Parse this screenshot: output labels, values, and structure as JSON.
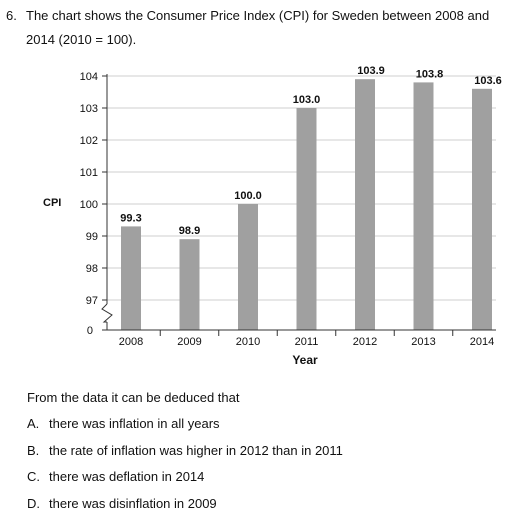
{
  "question": {
    "number": "6.",
    "text_line1": "The chart shows the Consumer Price Index (CPI) for Sweden between 2008 and",
    "text_line2": "2014 (2010 = 100)."
  },
  "chart_data": {
    "type": "bar",
    "categories": [
      "2008",
      "2009",
      "2010",
      "2011",
      "2012",
      "2013",
      "2014"
    ],
    "values": [
      99.3,
      98.9,
      100.0,
      103.0,
      103.9,
      103.8,
      103.6
    ],
    "value_labels": [
      "99.3",
      "98.9",
      "100.0",
      "103.0",
      "103.9",
      "103.8",
      "103.6"
    ],
    "title": "",
    "xlabel": "Year",
    "ylabel": "CPI",
    "y_ticks": [
      97,
      98,
      99,
      100,
      101,
      102,
      103,
      104
    ],
    "y_tick_labels": [
      "97",
      "98",
      "99",
      "100",
      "101",
      "102",
      "103",
      "104"
    ],
    "y_axis_base_label": "0",
    "y_axis_break": true,
    "ylim": [
      96.5,
      104
    ],
    "grid": true,
    "bar_color": "#a0a0a0",
    "grid_color": "#cfcfcf"
  },
  "prompt": "From the data it can be deduced that",
  "options": [
    {
      "letter": "A.",
      "text": "there was inflation in all years"
    },
    {
      "letter": "B.",
      "text": "the rate of inflation was higher in 2012 than in 2011"
    },
    {
      "letter": "C.",
      "text": "there was deflation in 2014"
    },
    {
      "letter": "D.",
      "text": "there was disinflation in 2009"
    }
  ]
}
